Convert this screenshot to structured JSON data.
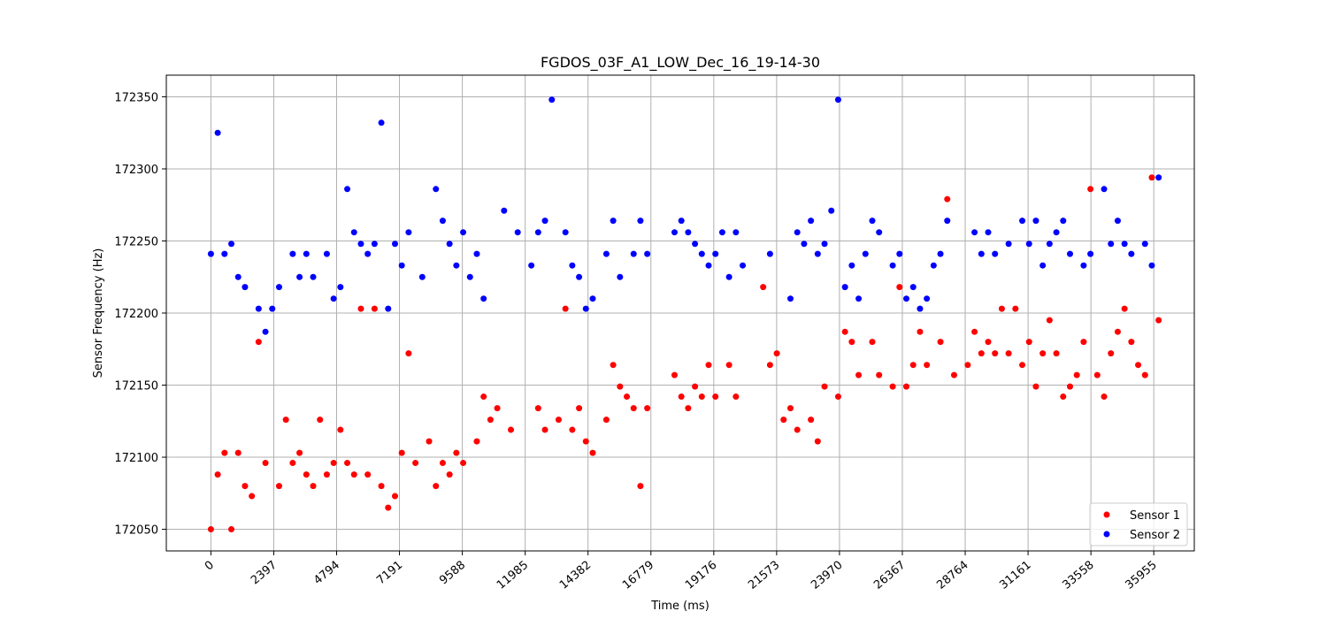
{
  "chart_data": {
    "type": "scatter",
    "title": "FGDOS_03F_A1_LOW_Dec_16_19-14-30",
    "xlabel": "Time (ms)",
    "ylabel": "Sensor Frequency (Hz)",
    "xlim": [
      -1700,
      37500
    ],
    "ylim": [
      172035,
      172365
    ],
    "xticks": [
      0,
      2397,
      4794,
      7191,
      9588,
      11985,
      14382,
      16779,
      19176,
      21573,
      23970,
      26367,
      28764,
      31161,
      33558,
      35955
    ],
    "yticks": [
      172050,
      172100,
      172150,
      172200,
      172250,
      172300,
      172350
    ],
    "grid": true,
    "legend_position": "bottom-right",
    "series": [
      {
        "name": "Sensor 1",
        "color": "#ff0000",
        "points": [
          [
            0,
            172050
          ],
          [
            260,
            172088
          ],
          [
            520,
            172103
          ],
          [
            780,
            172050
          ],
          [
            1040,
            172103
          ],
          [
            1300,
            172080
          ],
          [
            1560,
            172073
          ],
          [
            1820,
            172180
          ],
          [
            2080,
            172096
          ],
          [
            2600,
            172080
          ],
          [
            2860,
            172126
          ],
          [
            3120,
            172096
          ],
          [
            3380,
            172103
          ],
          [
            3640,
            172088
          ],
          [
            3900,
            172080
          ],
          [
            4160,
            172126
          ],
          [
            4420,
            172088
          ],
          [
            4680,
            172096
          ],
          [
            4940,
            172119
          ],
          [
            5200,
            172096
          ],
          [
            5460,
            172088
          ],
          [
            5720,
            172203
          ],
          [
            5980,
            172088
          ],
          [
            6240,
            172203
          ],
          [
            6500,
            172080
          ],
          [
            6760,
            172065
          ],
          [
            7020,
            172073
          ],
          [
            7280,
            172103
          ],
          [
            7540,
            172172
          ],
          [
            7800,
            172096
          ],
          [
            8320,
            172111
          ],
          [
            8580,
            172080
          ],
          [
            8840,
            172096
          ],
          [
            9100,
            172088
          ],
          [
            9360,
            172103
          ],
          [
            9620,
            172096
          ],
          [
            10140,
            172111
          ],
          [
            10400,
            172142
          ],
          [
            10660,
            172126
          ],
          [
            10920,
            172134
          ],
          [
            11440,
            172119
          ],
          [
            12480,
            172134
          ],
          [
            12740,
            172119
          ],
          [
            13260,
            172126
          ],
          [
            13520,
            172203
          ],
          [
            13780,
            172119
          ],
          [
            14040,
            172134
          ],
          [
            14300,
            172111
          ],
          [
            14560,
            172103
          ],
          [
            15080,
            172126
          ],
          [
            15340,
            172164
          ],
          [
            15600,
            172149
          ],
          [
            15860,
            172142
          ],
          [
            16120,
            172134
          ],
          [
            16380,
            172080
          ],
          [
            16640,
            172134
          ],
          [
            17680,
            172157
          ],
          [
            17940,
            172142
          ],
          [
            18200,
            172134
          ],
          [
            18460,
            172149
          ],
          [
            18720,
            172142
          ],
          [
            18980,
            172164
          ],
          [
            19240,
            172142
          ],
          [
            19760,
            172164
          ],
          [
            20020,
            172142
          ],
          [
            21060,
            172218
          ],
          [
            21320,
            172164
          ],
          [
            21580,
            172172
          ],
          [
            21840,
            172126
          ],
          [
            22100,
            172134
          ],
          [
            22360,
            172119
          ],
          [
            22880,
            172126
          ],
          [
            23140,
            172111
          ],
          [
            23400,
            172149
          ],
          [
            23920,
            172142
          ],
          [
            24180,
            172187
          ],
          [
            24440,
            172180
          ],
          [
            24700,
            172157
          ],
          [
            25220,
            172180
          ],
          [
            25480,
            172157
          ],
          [
            26000,
            172149
          ],
          [
            26260,
            172218
          ],
          [
            26520,
            172149
          ],
          [
            26780,
            172164
          ],
          [
            27040,
            172187
          ],
          [
            27300,
            172164
          ],
          [
            27820,
            172180
          ],
          [
            28080,
            172279
          ],
          [
            28340,
            172157
          ],
          [
            28860,
            172164
          ],
          [
            29120,
            172187
          ],
          [
            29380,
            172172
          ],
          [
            29640,
            172180
          ],
          [
            29900,
            172172
          ],
          [
            30160,
            172203
          ],
          [
            30420,
            172172
          ],
          [
            30680,
            172203
          ],
          [
            30940,
            172164
          ],
          [
            31200,
            172180
          ],
          [
            31460,
            172149
          ],
          [
            31720,
            172172
          ],
          [
            31980,
            172195
          ],
          [
            32240,
            172172
          ],
          [
            32500,
            172142
          ],
          [
            32760,
            172149
          ],
          [
            33020,
            172157
          ],
          [
            33280,
            172180
          ],
          [
            33540,
            172286
          ],
          [
            33800,
            172157
          ],
          [
            34060,
            172142
          ],
          [
            34320,
            172172
          ],
          [
            34580,
            172187
          ],
          [
            34840,
            172203
          ],
          [
            35100,
            172180
          ],
          [
            35360,
            172164
          ],
          [
            35620,
            172157
          ],
          [
            35880,
            172294
          ],
          [
            36140,
            172195
          ]
        ]
      },
      {
        "name": "Sensor 2",
        "color": "#0000ff",
        "points": [
          [
            0,
            172241
          ],
          [
            260,
            172325
          ],
          [
            520,
            172241
          ],
          [
            780,
            172248
          ],
          [
            1040,
            172225
          ],
          [
            1300,
            172218
          ],
          [
            1820,
            172203
          ],
          [
            2080,
            172187
          ],
          [
            2340,
            172203
          ],
          [
            2600,
            172218
          ],
          [
            3120,
            172241
          ],
          [
            3380,
            172225
          ],
          [
            3640,
            172241
          ],
          [
            3900,
            172225
          ],
          [
            4420,
            172241
          ],
          [
            4680,
            172210
          ],
          [
            4940,
            172218
          ],
          [
            5200,
            172286
          ],
          [
            5460,
            172256
          ],
          [
            5720,
            172248
          ],
          [
            5980,
            172241
          ],
          [
            6240,
            172248
          ],
          [
            6500,
            172332
          ],
          [
            6760,
            172203
          ],
          [
            7020,
            172248
          ],
          [
            7280,
            172233
          ],
          [
            7540,
            172256
          ],
          [
            8060,
            172225
          ],
          [
            8580,
            172286
          ],
          [
            8840,
            172264
          ],
          [
            9100,
            172248
          ],
          [
            9360,
            172233
          ],
          [
            9620,
            172256
          ],
          [
            9880,
            172225
          ],
          [
            10140,
            172241
          ],
          [
            10400,
            172210
          ],
          [
            11180,
            172271
          ],
          [
            11700,
            172256
          ],
          [
            12220,
            172233
          ],
          [
            12480,
            172256
          ],
          [
            12740,
            172264
          ],
          [
            13000,
            172348
          ],
          [
            13520,
            172256
          ],
          [
            13780,
            172233
          ],
          [
            14040,
            172225
          ],
          [
            14300,
            172203
          ],
          [
            14560,
            172210
          ],
          [
            15080,
            172241
          ],
          [
            15340,
            172264
          ],
          [
            15600,
            172225
          ],
          [
            16120,
            172241
          ],
          [
            16380,
            172264
          ],
          [
            16640,
            172241
          ],
          [
            17680,
            172256
          ],
          [
            17940,
            172264
          ],
          [
            18200,
            172256
          ],
          [
            18460,
            172248
          ],
          [
            18720,
            172241
          ],
          [
            18980,
            172233
          ],
          [
            19240,
            172241
          ],
          [
            19500,
            172256
          ],
          [
            19760,
            172225
          ],
          [
            20020,
            172256
          ],
          [
            20280,
            172233
          ],
          [
            21320,
            172241
          ],
          [
            22100,
            172210
          ],
          [
            22360,
            172256
          ],
          [
            22620,
            172248
          ],
          [
            22880,
            172264
          ],
          [
            23140,
            172241
          ],
          [
            23400,
            172248
          ],
          [
            23660,
            172271
          ],
          [
            23920,
            172348
          ],
          [
            24180,
            172218
          ],
          [
            24440,
            172233
          ],
          [
            24700,
            172210
          ],
          [
            24960,
            172241
          ],
          [
            25220,
            172264
          ],
          [
            25480,
            172256
          ],
          [
            26000,
            172233
          ],
          [
            26260,
            172241
          ],
          [
            26520,
            172210
          ],
          [
            26780,
            172218
          ],
          [
            27040,
            172203
          ],
          [
            27300,
            172210
          ],
          [
            27560,
            172233
          ],
          [
            27820,
            172241
          ],
          [
            28080,
            172264
          ],
          [
            29120,
            172256
          ],
          [
            29380,
            172241
          ],
          [
            29640,
            172256
          ],
          [
            29900,
            172241
          ],
          [
            30420,
            172248
          ],
          [
            30940,
            172264
          ],
          [
            31200,
            172248
          ],
          [
            31460,
            172264
          ],
          [
            31720,
            172233
          ],
          [
            31980,
            172248
          ],
          [
            32240,
            172256
          ],
          [
            32500,
            172264
          ],
          [
            32760,
            172241
          ],
          [
            33280,
            172233
          ],
          [
            33540,
            172241
          ],
          [
            34060,
            172286
          ],
          [
            34320,
            172248
          ],
          [
            34580,
            172264
          ],
          [
            34840,
            172248
          ],
          [
            35100,
            172241
          ],
          [
            35620,
            172248
          ],
          [
            35880,
            172233
          ],
          [
            36140,
            172294
          ]
        ]
      }
    ]
  }
}
